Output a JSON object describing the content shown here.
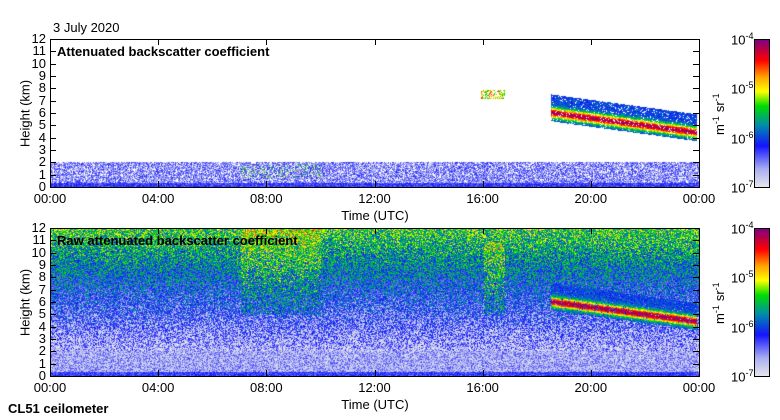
{
  "date": "3 July 2020",
  "footer": "CL51 ceilometer",
  "colors": {
    "scale": [
      "#d8d8e8",
      "#a0a8f0",
      "#0000ff",
      "#0090a0",
      "#00e000",
      "#ffff00",
      "#ffa000",
      "#ff0000",
      "#800080"
    ]
  },
  "chart_data": [
    {
      "type": "heatmap",
      "title": "Attenuated backscatter coefficient",
      "xlabel": "Time (UTC)",
      "ylabel": "Height (km)",
      "xticks": [
        "00:00",
        "04:00",
        "08:00",
        "12:00",
        "16:00",
        "20:00",
        "00:00"
      ],
      "yticks": [
        "0",
        "1",
        "2",
        "3",
        "4",
        "5",
        "6",
        "7",
        "8",
        "9",
        "10",
        "11",
        "12"
      ],
      "xlim_hours": [
        0,
        24
      ],
      "ylim_km": [
        0,
        12
      ],
      "colorbar": {
        "label": "m-1 sr-1",
        "ticks": [
          "10-7",
          "10-6",
          "10-5",
          "10-4"
        ],
        "log10_range": [
          -7,
          -4
        ]
      },
      "features": {
        "boundary_layer_top_km": 2,
        "cloud_start_hour": 18.5,
        "cloud_height_km": [
          6,
          4.5
        ]
      }
    },
    {
      "type": "heatmap",
      "title": "Raw attenuated backscatter coefficient",
      "xlabel": "Time (UTC)",
      "ylabel": "Height (km)",
      "xticks": [
        "00:00",
        "04:00",
        "08:00",
        "12:00",
        "16:00",
        "20:00",
        "00:00"
      ],
      "yticks": [
        "0",
        "1",
        "2",
        "3",
        "4",
        "5",
        "6",
        "7",
        "8",
        "9",
        "10",
        "11",
        "12"
      ],
      "xlim_hours": [
        0,
        24
      ],
      "ylim_km": [
        0,
        12
      ],
      "colorbar": {
        "label": "m-1 sr-1",
        "ticks": [
          "10-7",
          "10-6",
          "10-5",
          "10-4"
        ],
        "log10_range": [
          -7,
          -4
        ]
      },
      "features": {
        "boundary_layer_top_km": 2,
        "cloud_start_hour": 18.5,
        "cloud_height_km": [
          6,
          4.5
        ]
      }
    }
  ],
  "unit": {
    "m": "m",
    "m_exp": "-1",
    "sr": "sr",
    "sr_exp": "-1"
  },
  "cbticks": [
    {
      "base": "10",
      "exp": "-7"
    },
    {
      "base": "10",
      "exp": "-6"
    },
    {
      "base": "10",
      "exp": "-5"
    },
    {
      "base": "10",
      "exp": "-4"
    }
  ]
}
